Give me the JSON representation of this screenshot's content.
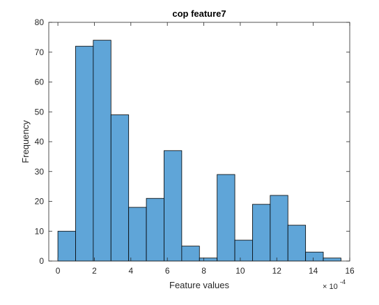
{
  "chart_data": {
    "type": "bar",
    "subtype": "histogram",
    "title": "cop feature7",
    "xlabel": "Feature values",
    "ylabel": "Frequency",
    "x_exponent": "-4",
    "x_exponent_base": "× 10",
    "xlim": [
      -0.5,
      16.0
    ],
    "ylim": [
      0,
      80
    ],
    "xticks": [
      0,
      2,
      4,
      6,
      8,
      10,
      12,
      14,
      16
    ],
    "yticks": [
      0,
      10,
      20,
      30,
      40,
      50,
      60,
      70,
      80
    ],
    "bin_edges": [
      0,
      0.97,
      1.94,
      2.91,
      3.88,
      4.85,
      5.82,
      6.79,
      7.76,
      8.73,
      9.7,
      10.67,
      11.64,
      12.61,
      13.58,
      14.55,
      15.52
    ],
    "values": [
      10,
      72,
      74,
      49,
      18,
      21,
      37,
      5,
      1,
      29,
      7,
      19,
      22,
      12,
      3,
      1
    ],
    "grid": false,
    "box": true,
    "colors": {
      "bar_fill": "#5FA5D8",
      "bar_edge": "#000000",
      "axis": "#262626",
      "frame": "#262626"
    }
  }
}
